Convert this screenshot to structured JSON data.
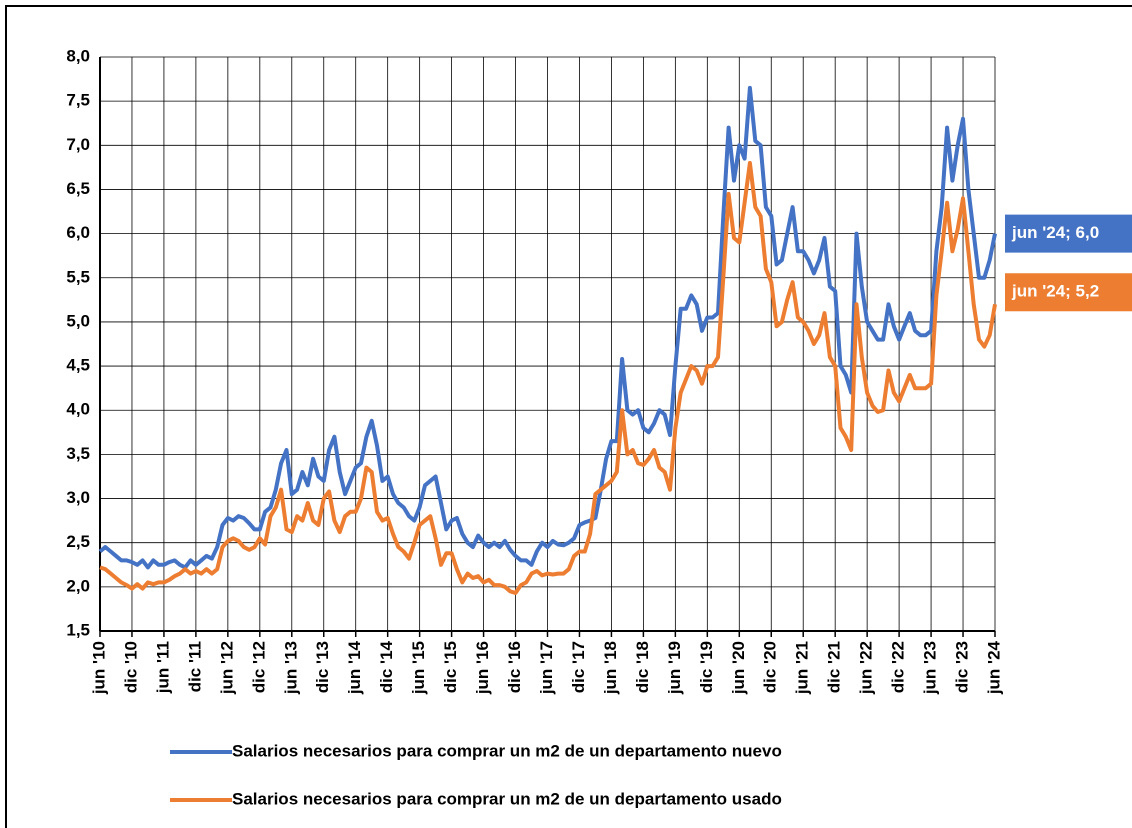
{
  "chart_data": {
    "type": "line",
    "categories": [
      "jun '10",
      null,
      null,
      null,
      null,
      null,
      "dic '10",
      null,
      null,
      null,
      null,
      null,
      "jun '11",
      null,
      null,
      null,
      null,
      null,
      "dic '11",
      null,
      null,
      null,
      null,
      null,
      "jun '12",
      null,
      null,
      null,
      null,
      null,
      "dic '12",
      null,
      null,
      null,
      null,
      null,
      "jun '13",
      null,
      null,
      null,
      null,
      null,
      "dic '13",
      null,
      null,
      null,
      null,
      null,
      "jun '14",
      null,
      null,
      null,
      null,
      null,
      "dic '14",
      null,
      null,
      null,
      null,
      null,
      "jun '15",
      null,
      null,
      null,
      null,
      null,
      "dic '15",
      null,
      null,
      null,
      null,
      null,
      "jun '16",
      null,
      null,
      null,
      null,
      null,
      "dic '16",
      null,
      null,
      null,
      null,
      null,
      "jun '17",
      null,
      null,
      null,
      null,
      null,
      "dic '17",
      null,
      null,
      null,
      null,
      null,
      "jun '18",
      null,
      null,
      null,
      null,
      null,
      "dic '18",
      null,
      null,
      null,
      null,
      null,
      "jun '19",
      null,
      null,
      null,
      null,
      null,
      "dic '19",
      null,
      null,
      null,
      null,
      null,
      "jun '20",
      null,
      null,
      null,
      null,
      null,
      "dic '20",
      null,
      null,
      null,
      null,
      null,
      "jun '21",
      null,
      null,
      null,
      null,
      null,
      "dic '21",
      null,
      null,
      null,
      null,
      null,
      "jun '22",
      null,
      null,
      null,
      null,
      null,
      "dic '22",
      null,
      null,
      null,
      null,
      null,
      "jun '23",
      null,
      null,
      null,
      null,
      null,
      "dic '23",
      null,
      null,
      null,
      null,
      null,
      "jun '24"
    ],
    "series": [
      {
        "name": "Salarios necesarios para comprar un m2 de un departamento nuevo",
        "color": "#4472c4",
        "values": [
          2.4,
          2.45,
          2.4,
          2.35,
          2.3,
          2.3,
          2.28,
          2.25,
          2.3,
          2.22,
          2.3,
          2.25,
          2.25,
          2.28,
          2.3,
          2.25,
          2.22,
          2.3,
          2.25,
          2.3,
          2.35,
          2.32,
          2.45,
          2.7,
          2.78,
          2.75,
          2.8,
          2.78,
          2.72,
          2.65,
          2.65,
          2.85,
          2.9,
          3.1,
          3.4,
          3.55,
          3.05,
          3.1,
          3.3,
          3.15,
          3.45,
          3.25,
          3.2,
          3.55,
          3.7,
          3.3,
          3.05,
          3.2,
          3.35,
          3.4,
          3.7,
          3.88,
          3.6,
          3.2,
          3.25,
          3.05,
          2.95,
          2.9,
          2.8,
          2.75,
          2.9,
          3.15,
          3.2,
          3.25,
          2.95,
          2.65,
          2.75,
          2.78,
          2.6,
          2.5,
          2.45,
          2.58,
          2.5,
          2.45,
          2.5,
          2.45,
          2.52,
          2.42,
          2.35,
          2.3,
          2.3,
          2.25,
          2.4,
          2.5,
          2.45,
          2.52,
          2.48,
          2.47,
          2.5,
          2.55,
          2.7,
          2.73,
          2.75,
          2.78,
          3.1,
          3.45,
          3.65,
          3.65,
          4.58,
          4.0,
          3.95,
          4.0,
          3.8,
          3.75,
          3.85,
          4.0,
          3.95,
          3.72,
          4.5,
          5.15,
          5.15,
          5.3,
          5.2,
          4.9,
          5.05,
          5.05,
          5.1,
          6.2,
          7.2,
          6.6,
          7.0,
          6.85,
          7.65,
          7.05,
          7.0,
          6.3,
          6.2,
          5.65,
          5.7,
          6.0,
          6.3,
          5.8,
          5.8,
          5.7,
          5.55,
          5.7,
          5.95,
          5.4,
          5.35,
          4.5,
          4.4,
          4.2,
          6.0,
          5.4,
          5.0,
          4.9,
          4.8,
          4.8,
          5.2,
          4.95,
          4.8,
          4.95,
          5.1,
          4.9,
          4.85,
          4.85,
          4.9,
          5.8,
          6.3,
          7.2,
          6.6,
          7.0,
          7.3,
          6.5,
          6.0,
          5.5,
          5.5,
          5.7,
          6.0
        ]
      },
      {
        "name": "Salarios necesarios para comprar un m2 de un departamento usado",
        "color": "#ed7d31",
        "values": [
          2.22,
          2.2,
          2.15,
          2.1,
          2.05,
          2.02,
          1.98,
          2.03,
          1.98,
          2.05,
          2.03,
          2.05,
          2.05,
          2.08,
          2.12,
          2.15,
          2.2,
          2.15,
          2.18,
          2.15,
          2.2,
          2.15,
          2.2,
          2.45,
          2.52,
          2.55,
          2.52,
          2.45,
          2.42,
          2.45,
          2.55,
          2.48,
          2.8,
          2.9,
          3.1,
          2.65,
          2.62,
          2.8,
          2.75,
          2.95,
          2.75,
          2.7,
          3.0,
          3.08,
          2.75,
          2.62,
          2.8,
          2.85,
          2.85,
          3.0,
          3.35,
          3.3,
          2.85,
          2.75,
          2.78,
          2.6,
          2.45,
          2.4,
          2.32,
          2.5,
          2.7,
          2.75,
          2.8,
          2.55,
          2.25,
          2.38,
          2.38,
          2.2,
          2.05,
          2.15,
          2.1,
          2.12,
          2.05,
          2.08,
          2.02,
          2.02,
          2.0,
          1.95,
          1.93,
          2.02,
          2.05,
          2.15,
          2.18,
          2.13,
          2.15,
          2.14,
          2.15,
          2.15,
          2.2,
          2.35,
          2.4,
          2.4,
          2.6,
          3.05,
          3.1,
          3.15,
          3.2,
          3.3,
          4.0,
          3.5,
          3.55,
          3.4,
          3.38,
          3.45,
          3.55,
          3.35,
          3.3,
          3.1,
          3.8,
          4.2,
          4.35,
          4.5,
          4.45,
          4.3,
          4.5,
          4.5,
          4.6,
          5.5,
          6.45,
          5.95,
          5.9,
          6.35,
          6.8,
          6.3,
          6.2,
          5.6,
          5.45,
          4.95,
          5.0,
          5.25,
          5.45,
          5.05,
          5.0,
          4.9,
          4.75,
          4.85,
          5.1,
          4.6,
          4.5,
          3.8,
          3.7,
          3.55,
          5.2,
          4.6,
          4.2,
          4.05,
          3.98,
          4.0,
          4.45,
          4.2,
          4.1,
          4.25,
          4.4,
          4.25,
          4.25,
          4.25,
          4.3,
          5.3,
          5.8,
          6.35,
          5.8,
          6.05,
          6.4,
          5.8,
          5.2,
          4.8,
          4.72,
          4.85,
          5.2
        ]
      }
    ],
    "annotations": [
      {
        "text": "jun '24; 6,0",
        "series": 0
      },
      {
        "text": "jun '24; 5,2",
        "series": 1
      }
    ],
    "ylim": [
      1.5,
      8.0
    ],
    "yticks": [
      {
        "value": 1.5,
        "label": "1,5"
      },
      {
        "value": 2.0,
        "label": "2,0"
      },
      {
        "value": 2.5,
        "label": "2,5"
      },
      {
        "value": 3.0,
        "label": "3,0"
      },
      {
        "value": 3.5,
        "label": "3,5"
      },
      {
        "value": 4.0,
        "label": "4,0"
      },
      {
        "value": 4.5,
        "label": "4,5"
      },
      {
        "value": 5.0,
        "label": "5,0"
      },
      {
        "value": 5.5,
        "label": "5,5"
      },
      {
        "value": 6.0,
        "label": "6,0"
      },
      {
        "value": 6.5,
        "label": "6,5"
      },
      {
        "value": 7.0,
        "label": "7,0"
      },
      {
        "value": 7.5,
        "label": "7,5"
      },
      {
        "value": 8.0,
        "label": "8,0"
      }
    ],
    "grid": true
  }
}
